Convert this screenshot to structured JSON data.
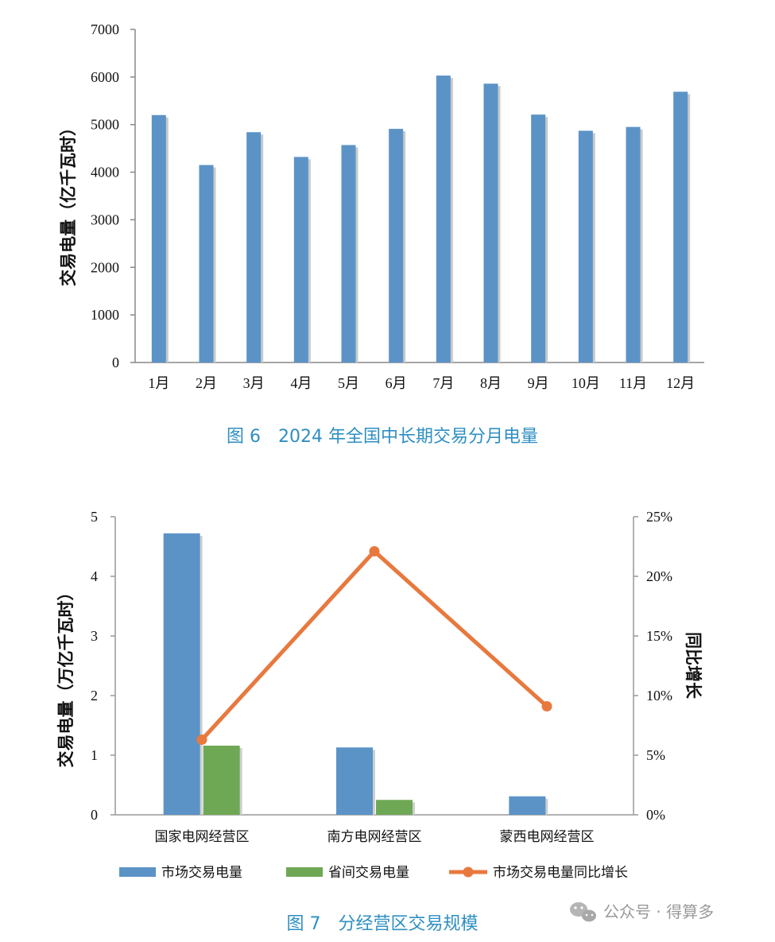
{
  "chart_data": [
    {
      "type": "bar",
      "title": "图 6　2024 年全国中长期交易分月电量",
      "ylabel": "交易电量（亿千瓦时）",
      "xlabel": "",
      "ylim": [
        0,
        7000
      ],
      "yticks": [
        "0",
        "1000",
        "2000",
        "3000",
        "4000",
        "5000",
        "6000",
        "7000"
      ],
      "categories": [
        "1月",
        "2月",
        "3月",
        "4月",
        "5月",
        "6月",
        "7月",
        "8月",
        "9月",
        "10月",
        "11月",
        "12月"
      ],
      "values": [
        5200,
        4150,
        4840,
        4320,
        4570,
        4910,
        6030,
        5860,
        5210,
        4870,
        4950,
        5690
      ],
      "color": "#5b93c7",
      "grid": false
    },
    {
      "type": "bar",
      "title": "图 7　分经营区交易规模",
      "ylabel": "交易电量（万亿千瓦时）",
      "y2label": "同比增长",
      "xlabel": "",
      "ylim": [
        0,
        5
      ],
      "y2lim": [
        0,
        25
      ],
      "yticks": [
        "0",
        "1",
        "2",
        "3",
        "4",
        "5"
      ],
      "y2ticks": [
        "0%",
        "5%",
        "10%",
        "15%",
        "20%",
        "25%"
      ],
      "categories": [
        "国家电网经营区",
        "南方电网经营区",
        "蒙西电网经营区"
      ],
      "series": [
        {
          "name": "市场交易电量",
          "type": "bar",
          "axis": "left",
          "color": "#5b93c7",
          "values": [
            4.72,
            1.13,
            0.31
          ]
        },
        {
          "name": "省间交易电量",
          "type": "bar",
          "axis": "left",
          "color": "#6fa855",
          "values": [
            1.16,
            0.25,
            null
          ]
        },
        {
          "name": "市场交易电量同比增长",
          "type": "line",
          "axis": "right",
          "color": "#e8793e",
          "values": [
            6.3,
            22.1,
            9.1
          ]
        }
      ],
      "legend": "bottom",
      "grid": false
    }
  ],
  "watermark": "公众号 · 得算多"
}
